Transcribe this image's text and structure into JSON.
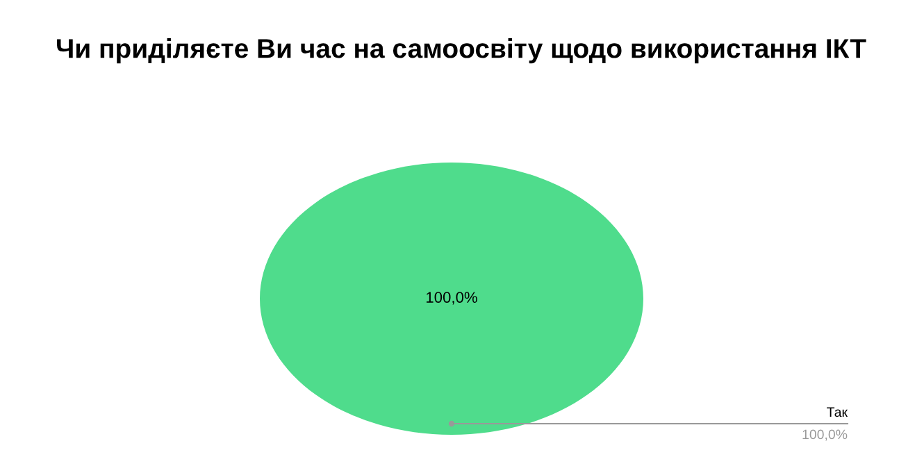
{
  "chart_data": {
    "type": "pie",
    "title": "Чи приділяєте Ви час на самоосвіту щодо використання ІКТ",
    "categories": [
      "Так"
    ],
    "values": [
      100
    ],
    "colors": [
      "#4fdc8c"
    ],
    "value_labels": [
      "100,0%"
    ]
  }
}
